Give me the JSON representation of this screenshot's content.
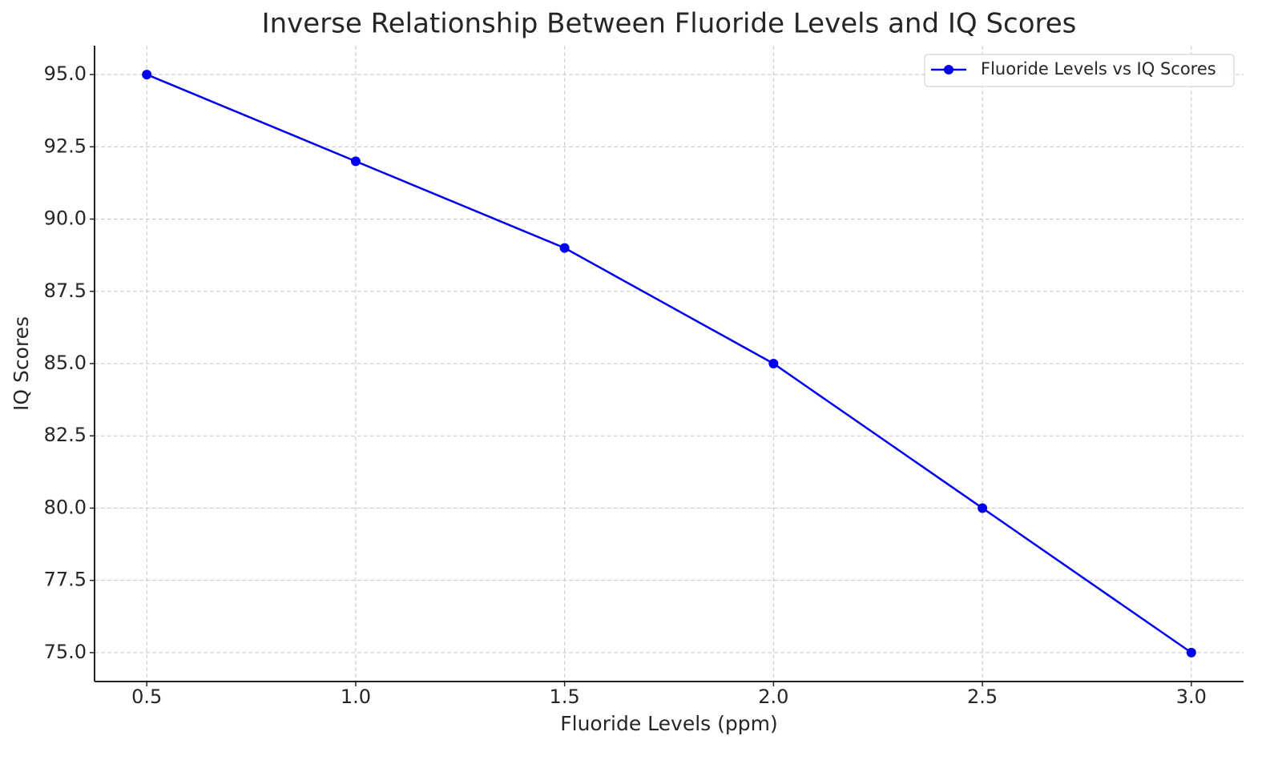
{
  "chart_data": {
    "type": "line",
    "title": "Inverse Relationship Between Fluoride Levels and IQ Scores",
    "x_label": "Fluoride Levels (ppm)",
    "y_label": "IQ Scores",
    "x": [
      0.5,
      1.0,
      1.5,
      2.0,
      2.5,
      3.0
    ],
    "series": [
      {
        "name": "Fluoride Levels vs IQ Scores",
        "color": "#0000ee",
        "values": [
          95,
          92,
          89,
          85,
          80,
          75
        ]
      }
    ],
    "xlim": [
      0.375,
      3.125
    ],
    "xticks": [
      0.5,
      {
        "value": 1,
        "label": "1.0"
      },
      1.5,
      {
        "value": 2,
        "label": "2.0"
      },
      2.5,
      {
        "value": 3,
        "label": "3.0"
      }
    ],
    "ylim": [
      74,
      96
    ],
    "yticks": [
      {
        "value": 75,
        "label": "75.0"
      },
      77.5,
      {
        "value": 80,
        "label": "80.0"
      },
      82.5,
      {
        "value": 85,
        "label": "85.0"
      },
      87.5,
      {
        "value": 90,
        "label": "90.0"
      },
      92.5,
      {
        "value": 95,
        "label": "95.0"
      }
    ],
    "grid": true,
    "legend": "upper-right"
  }
}
